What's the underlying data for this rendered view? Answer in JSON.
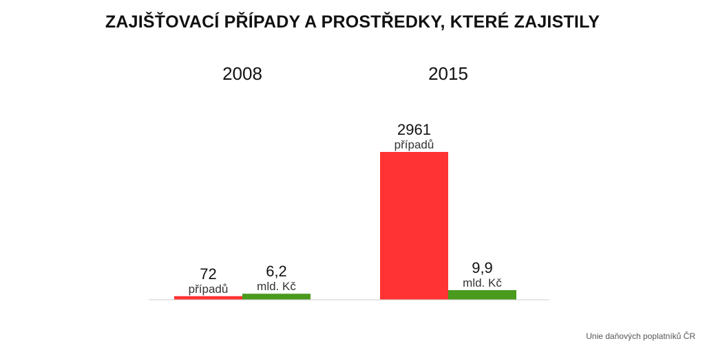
{
  "title": "ZAJIŠŤOVACÍ PŘÍPADY A PROSTŘEDKY, KTERÉ ZAJISTILY",
  "source": "Unie daňových poplatníků ČR",
  "chart_data": {
    "type": "bar",
    "title": "ZAJIŠŤOVACÍ PŘÍPADY A PROSTŘEDKY, KTERÉ ZAJISTILY",
    "categories": [
      "2008",
      "2015"
    ],
    "series": [
      {
        "values": [
          72,
          2961
        ],
        "value_labels": [
          "72",
          "2961"
        ],
        "unit_label": "případů",
        "color": "#ff3333"
      },
      {
        "values": [
          6.2,
          9.9
        ],
        "value_labels": [
          "6,2",
          "9,9"
        ],
        "unit_label": "mld. Kč",
        "color": "#4a9a1e"
      }
    ],
    "axis_color": "#cccccc",
    "grid": false,
    "legend": "none"
  }
}
